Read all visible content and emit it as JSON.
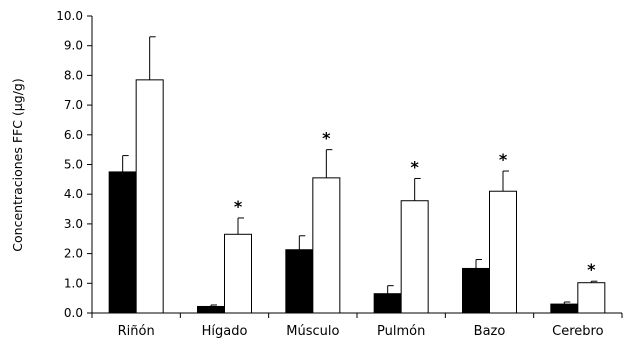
{
  "chart_data": {
    "type": "bar",
    "title": "",
    "xlabel": "",
    "ylabel": "Concentraciones FFC  (µg/g)",
    "ylim": [
      0,
      10
    ],
    "yticks": [
      "0.0",
      "1.0",
      "2.0",
      "3.0",
      "4.0",
      "5.0",
      "6.0",
      "7.0",
      "8.0",
      "9.0",
      "10.0"
    ],
    "categories": [
      "Riñón",
      "Hígado",
      "Músculo",
      "Pulmón",
      "Bazo",
      "Cerebro"
    ],
    "series": [
      {
        "values": [
          4.75,
          0.22,
          2.13,
          0.65,
          1.5,
          0.3
        ],
        "errors": [
          0.55,
          0.05,
          0.47,
          0.27,
          0.3,
          0.07
        ],
        "color": "#000000"
      },
      {
        "values": [
          7.85,
          2.65,
          4.55,
          3.78,
          4.1,
          1.02
        ],
        "errors": [
          1.45,
          0.55,
          0.95,
          0.75,
          0.68,
          0.05
        ],
        "color": "#ffffff"
      }
    ],
    "significance": [
      "",
      "*",
      "*",
      "*",
      "*",
      "*"
    ],
    "grid": false,
    "legend": "none"
  }
}
